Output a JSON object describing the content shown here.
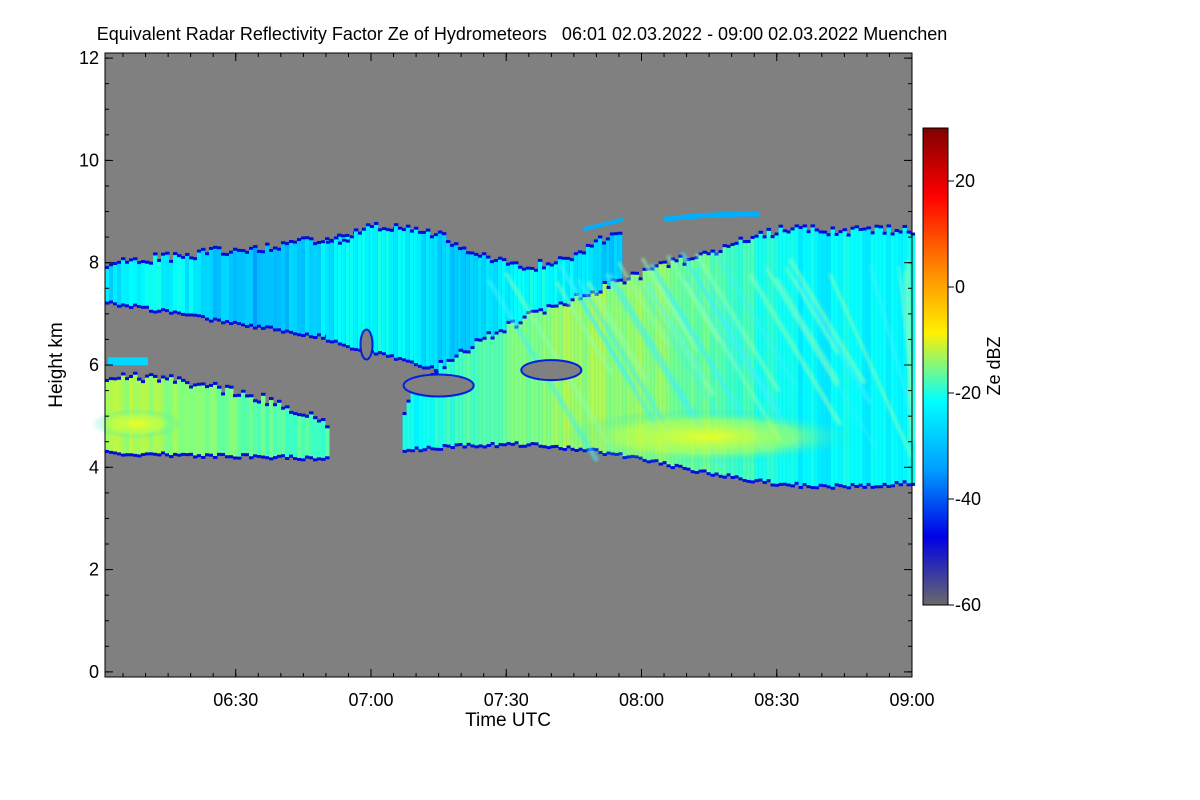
{
  "chart_data": {
    "type": "heatmap",
    "title": "Equivalent Radar Reflectivity Factor Ze of Hydrometeors   06:01 02.03.2022 - 09:00 02.03.2022 Muenchen",
    "xlabel": "Time UTC",
    "ylabel": "Height km",
    "x_ticks": [
      "06:30",
      "07:00",
      "07:30",
      "08:00",
      "08:30",
      "09:00"
    ],
    "x_tick_minutes": [
      390,
      420,
      450,
      480,
      510,
      540
    ],
    "xlim_minutes": [
      361,
      540
    ],
    "y_ticks": [
      0,
      2,
      4,
      6,
      8,
      10,
      12
    ],
    "ylim": [
      -0.1,
      12.1
    ],
    "background_color": "#808080",
    "colorbar": {
      "label": "Ze dBZ",
      "range": [
        -60,
        30
      ],
      "ticks": [
        20,
        0,
        -20,
        -40,
        -60
      ],
      "colors": [
        "#6a6a6a",
        "#0000e6",
        "#00a0ff",
        "#00ffff",
        "#fff000",
        "#ff8000",
        "#ff0000",
        "#800000"
      ]
    },
    "cloud_layers": [
      {
        "name": "upper",
        "x_range": [
          "06:01",
          "09:00"
        ],
        "base_km": [
          7.2,
          4.0
        ],
        "top_km": [
          8.0,
          9.0
        ],
        "ze_dbz_range": [
          -45,
          -5
        ]
      },
      {
        "name": "lower",
        "x_range": [
          "06:01",
          "06:50"
        ],
        "base_km": 4.3,
        "top_km": 5.8,
        "ze_dbz_range": [
          -40,
          -5
        ]
      },
      {
        "name": "merged",
        "x_range": [
          "07:07",
          "09:00"
        ],
        "base_km": [
          4.0,
          3.8
        ],
        "top_km": [
          5.2,
          8.5
        ],
        "ze_dbz_range": [
          -45,
          -2
        ]
      }
    ]
  }
}
